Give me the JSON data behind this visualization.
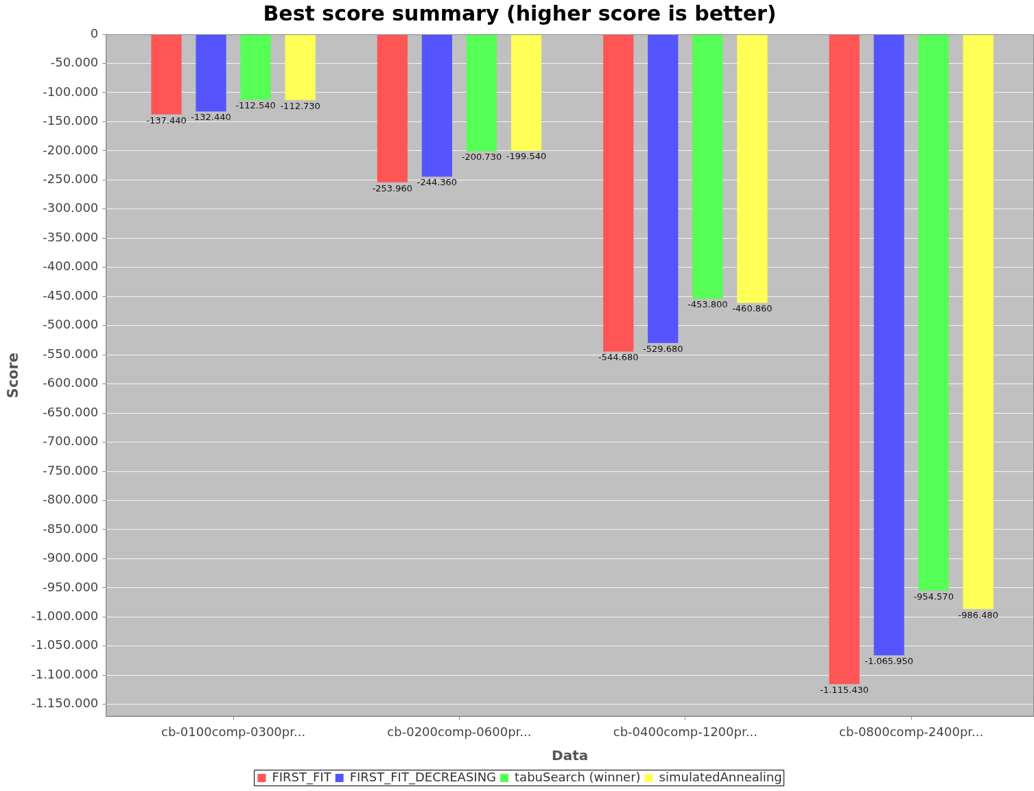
{
  "chart_data": {
    "type": "bar",
    "title": "Best score summary (higher score is better)",
    "xlabel": "Data",
    "ylabel": "Score",
    "categories": [
      "cb-0100comp-0300pr...",
      "cb-0200comp-0600pr...",
      "cb-0400comp-1200pr...",
      "cb-0800comp-2400pr..."
    ],
    "series": [
      {
        "name": "FIRST_FIT",
        "color": "#ff5555",
        "values": [
          -137440,
          -253960,
          -544680,
          -1115430
        ],
        "value_labels": [
          "-137.440",
          "-253.960",
          "-544.680",
          "-1.115.430"
        ]
      },
      {
        "name": "FIRST_FIT_DECREASING",
        "color": "#5555ff",
        "values": [
          -132440,
          -244360,
          -529680,
          -1065950
        ],
        "value_labels": [
          "-132.440",
          "-244.360",
          "-529.680",
          "-1.065.950"
        ]
      },
      {
        "name": "tabuSearch (winner)",
        "color": "#55ff55",
        "values": [
          -112540,
          -200730,
          -453800,
          -954570
        ],
        "value_labels": [
          "-112.540",
          "-200.730",
          "-453.800",
          "-954.570"
        ]
      },
      {
        "name": "simulatedAnnealing",
        "color": "#ffff55",
        "values": [
          -112730,
          -199540,
          -460860,
          -986480
        ],
        "value_labels": [
          "-112.730",
          "-199.540",
          "-460.860",
          "-986.480"
        ]
      }
    ],
    "ylim": [
      -1170800,
      0
    ],
    "yticks": [
      0,
      {
        "value": -50000,
        "label": "-50.000"
      },
      {
        "value": -100000,
        "label": "-100.000"
      },
      {
        "value": -150000,
        "label": "-150.000"
      },
      {
        "value": -200000,
        "label": "-200.000"
      },
      {
        "value": -250000,
        "label": "-250.000"
      },
      {
        "value": -300000,
        "label": "-300.000"
      },
      {
        "value": -350000,
        "label": "-350.000"
      },
      {
        "value": -400000,
        "label": "-400.000"
      },
      {
        "value": -450000,
        "label": "-450.000"
      },
      {
        "value": -500000,
        "label": "-500.000"
      },
      {
        "value": -550000,
        "label": "-550.000"
      },
      {
        "value": -600000,
        "label": "-600.000"
      },
      {
        "value": -650000,
        "label": "-650.000"
      },
      {
        "value": -700000,
        "label": "-700.000"
      },
      {
        "value": -750000,
        "label": "-750.000"
      },
      {
        "value": -800000,
        "label": "-800.000"
      },
      {
        "value": -850000,
        "label": "-850.000"
      },
      {
        "value": -900000,
        "label": "-900.000"
      },
      {
        "value": -950000,
        "label": "-950.000"
      },
      {
        "value": -1000000,
        "label": "-1.000.000"
      },
      {
        "value": -1050000,
        "label": "-1.050.000"
      },
      {
        "value": -1100000,
        "label": "-1.100.000"
      },
      {
        "value": -1150000,
        "label": "-1.150.000"
      }
    ],
    "grid": "y",
    "legend": "bottom"
  }
}
